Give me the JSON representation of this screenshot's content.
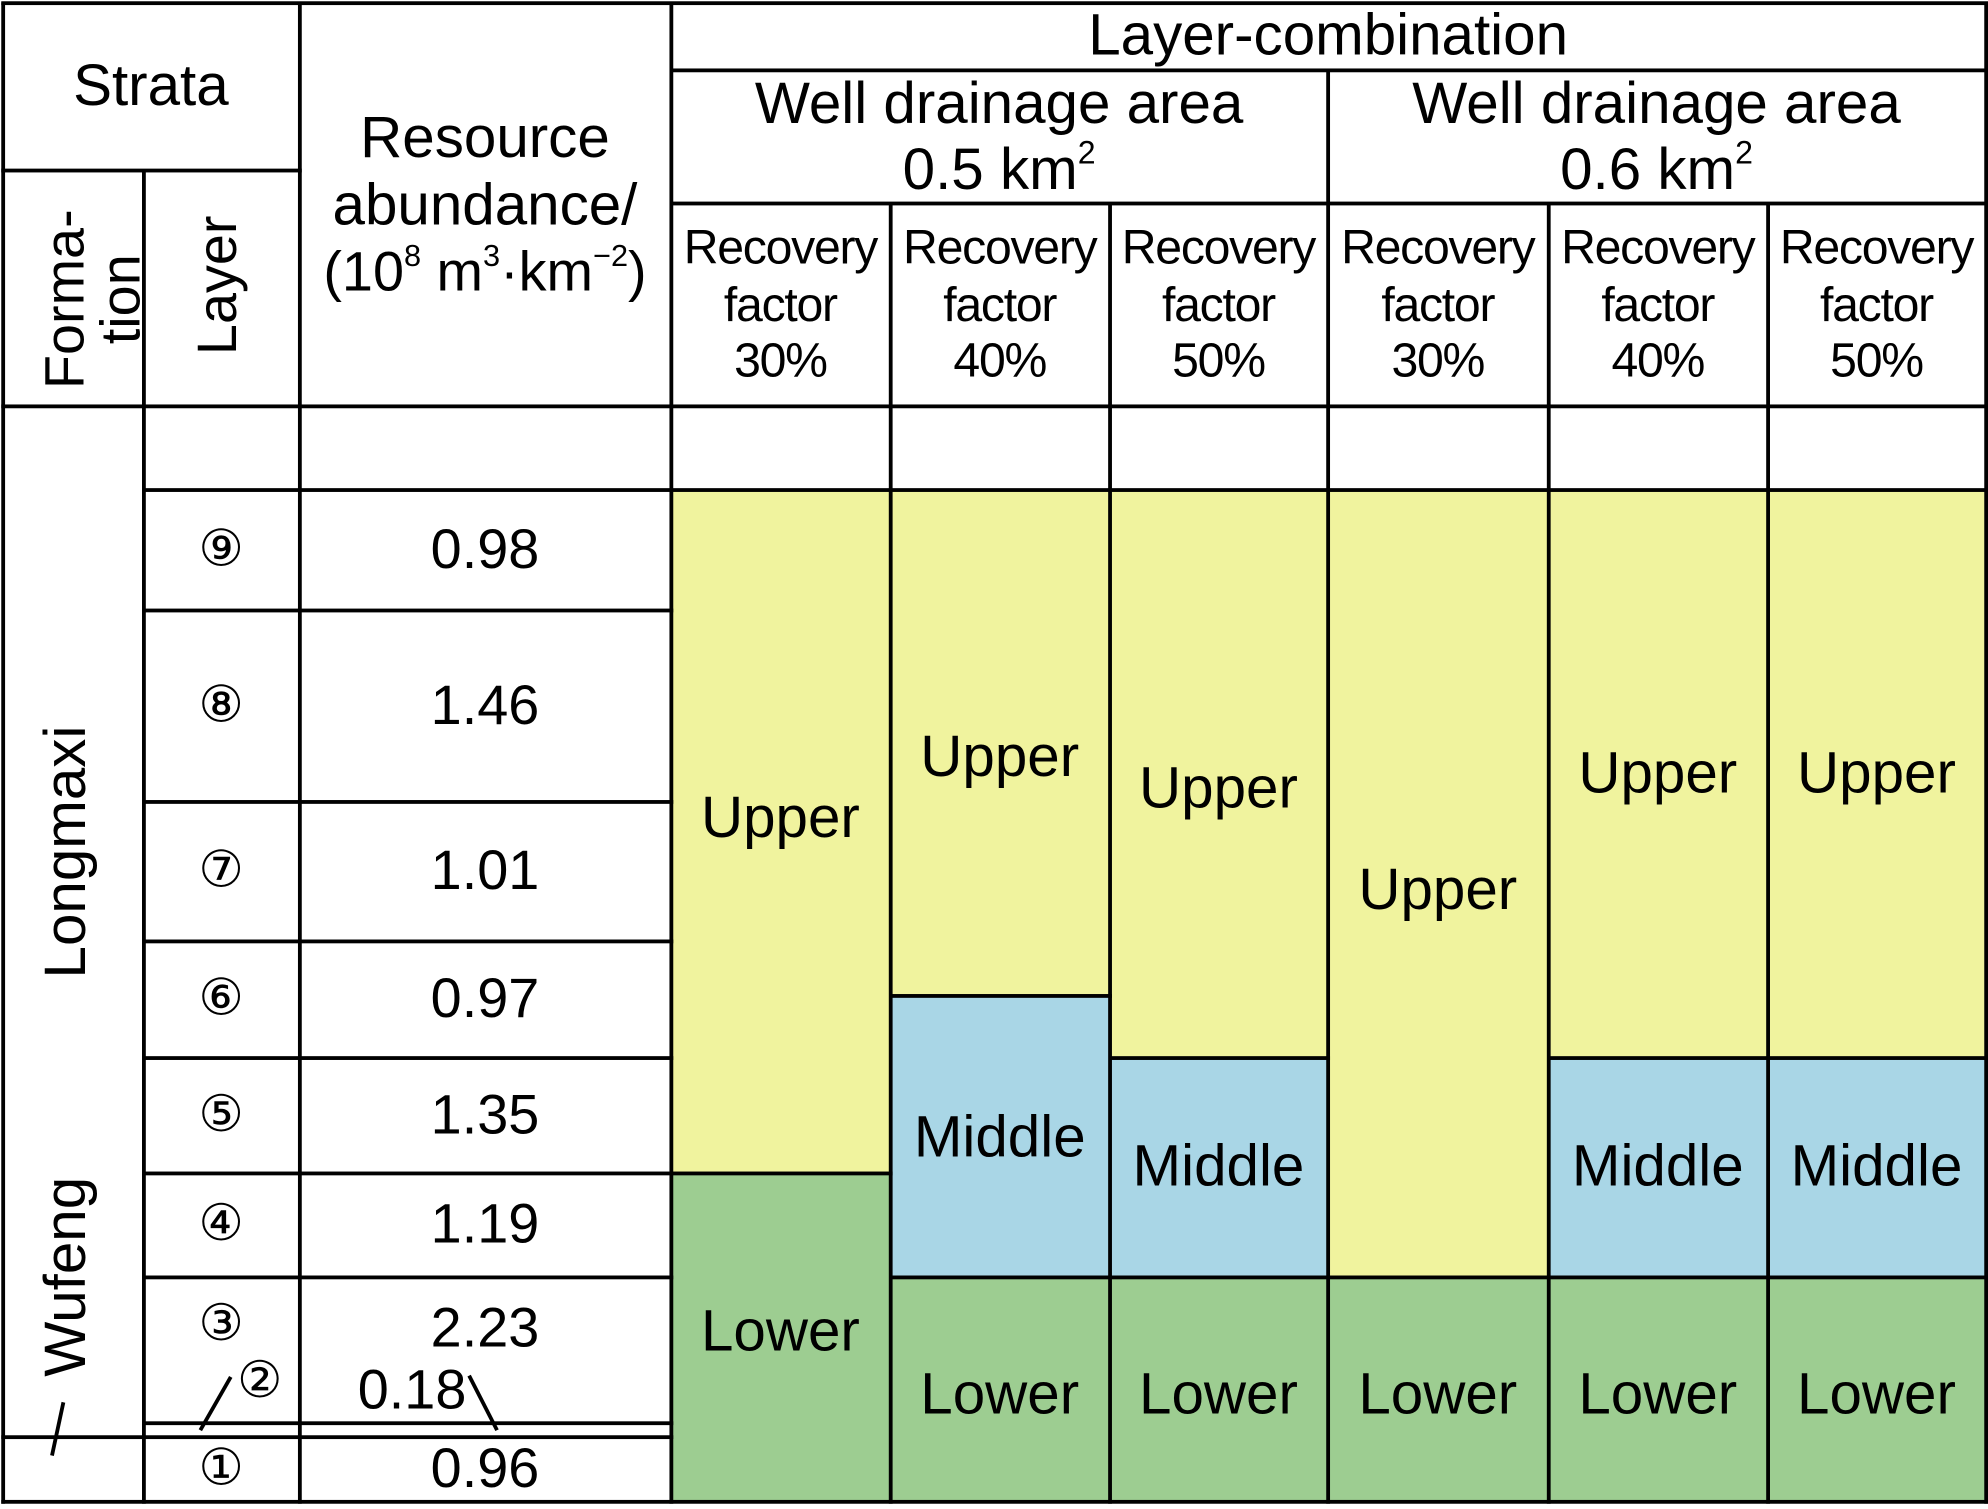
{
  "header": {
    "strata": "Strata",
    "formation_line1": "Forma-",
    "formation_line2": "tion",
    "layer": "Layer",
    "resource_line1": "Resource",
    "resource_line2": "abundance/",
    "resource_unit_open": "(10",
    "resource_unit_exp1": "8",
    "resource_unit_mid": " m",
    "resource_unit_exp2": "3",
    "resource_unit_mid2": "·km",
    "resource_unit_exp3": "−2",
    "resource_unit_close": ")",
    "layer_combination": "Layer-combination",
    "areas": [
      {
        "label": "Well drainage area",
        "value": "0.5 km",
        "exp": "2"
      },
      {
        "label": "Well drainage area",
        "value": "0.6 km",
        "exp": "2"
      }
    ],
    "recovery": [
      {
        "l1": "Recovery",
        "l2": "factor",
        "l3": "30%"
      },
      {
        "l1": "Recovery",
        "l2": "factor",
        "l3": "40%"
      },
      {
        "l1": "Recovery",
        "l2": "factor",
        "l3": "50%"
      },
      {
        "l1": "Recovery",
        "l2": "factor",
        "l3": "30%"
      },
      {
        "l1": "Recovery",
        "l2": "factor",
        "l3": "40%"
      },
      {
        "l1": "Recovery",
        "l2": "factor",
        "l3": "50%"
      }
    ]
  },
  "formations": [
    "Longmaxi",
    "Wufeng"
  ],
  "layers": [
    {
      "id": "⑨",
      "abundance": "0.98"
    },
    {
      "id": "⑧",
      "abundance": "1.46"
    },
    {
      "id": "⑦",
      "abundance": "1.01"
    },
    {
      "id": "⑥",
      "abundance": "0.97"
    },
    {
      "id": "⑤",
      "abundance": "1.35"
    },
    {
      "id": "④",
      "abundance": "1.19"
    },
    {
      "id": "③",
      "abundance": "2.23"
    },
    {
      "id": "②",
      "abundance": "0.18"
    },
    {
      "id": "①",
      "abundance": "0.96"
    }
  ],
  "colors": {
    "upper": "#f0f39e",
    "middle": "#a9d6e6",
    "lower": "#9dcd91"
  },
  "combinations": [
    [
      "Upper",
      "Lower"
    ],
    [
      "Upper",
      "Middle",
      "Lower"
    ],
    [
      "Upper",
      "Middle",
      "Lower"
    ],
    [
      "Upper",
      "Lower"
    ],
    [
      "Upper",
      "Middle",
      "Lower"
    ],
    [
      "Upper",
      "Middle",
      "Lower"
    ]
  ]
}
